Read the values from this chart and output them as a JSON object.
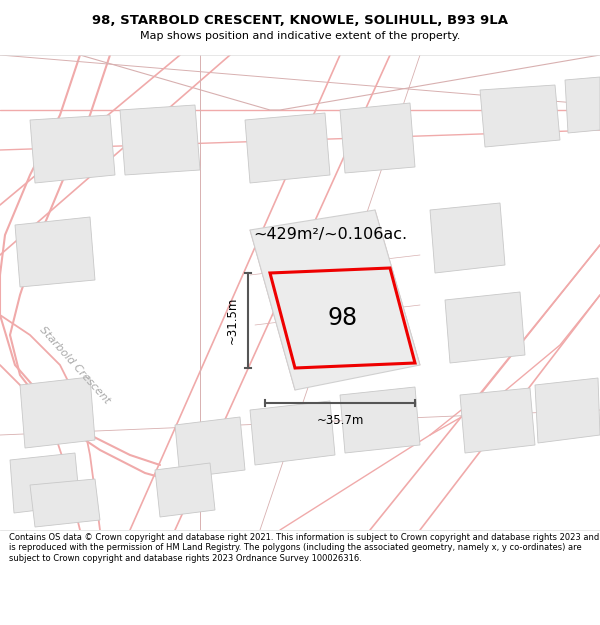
{
  "title_line1": "98, STARBOLD CRESCENT, KNOWLE, SOLIHULL, B93 9LA",
  "title_line2": "Map shows position and indicative extent of the property.",
  "footer": "Contains OS data © Crown copyright and database right 2021. This information is subject to Crown copyright and database rights 2023 and is reproduced with the permission of HM Land Registry. The polygons (including the associated geometry, namely x, y co-ordinates) are subject to Crown copyright and database rights 2023 Ordnance Survey 100026316.",
  "area_label": "~429m²/~0.106ac.",
  "width_label": "~35.7m",
  "height_label": "~31.5m",
  "property_number": "98",
  "road_label": "Starbold Crescent",
  "map_bg": "#f7f7f7",
  "building_fill": "#e8e8e8",
  "building_edge": "#c8c8c8",
  "road_line_color": "#f0aaaa",
  "parcel_line_color": "#d8b0b0",
  "property_outline_color": "#ee0000",
  "dim_line_color": "#555555",
  "title_area_bg": "#ffffff",
  "footer_area_bg": "#ffffff",
  "road_label_color": "#aaaaaa"
}
